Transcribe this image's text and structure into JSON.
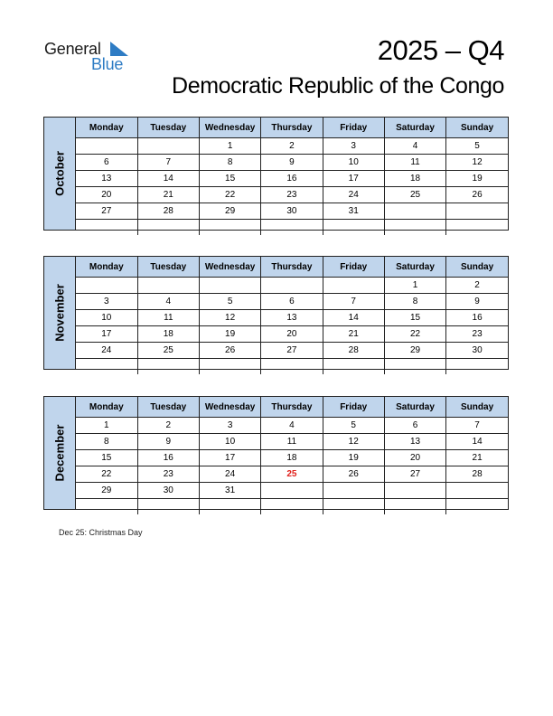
{
  "logo": {
    "general": "General",
    "blue": "Blue"
  },
  "title": "2025 – Q4",
  "country": "Democratic Republic of the Congo",
  "weekdays": [
    "Monday",
    "Tuesday",
    "Wednesday",
    "Thursday",
    "Friday",
    "Saturday",
    "Sunday"
  ],
  "months": [
    {
      "name": "October",
      "weeks": [
        [
          "",
          "",
          "1",
          "2",
          "3",
          "4",
          "5"
        ],
        [
          "6",
          "7",
          "8",
          "9",
          "10",
          "11",
          "12"
        ],
        [
          "13",
          "14",
          "15",
          "16",
          "17",
          "18",
          "19"
        ],
        [
          "20",
          "21",
          "22",
          "23",
          "24",
          "25",
          "26"
        ],
        [
          "27",
          "28",
          "29",
          "30",
          "31",
          "",
          ""
        ],
        [
          "",
          "",
          "",
          "",
          "",
          "",
          ""
        ]
      ]
    },
    {
      "name": "November",
      "weeks": [
        [
          "",
          "",
          "",
          "",
          "",
          "1",
          "2"
        ],
        [
          "3",
          "4",
          "5",
          "6",
          "7",
          "8",
          "9"
        ],
        [
          "10",
          "11",
          "12",
          "13",
          "14",
          "15",
          "16"
        ],
        [
          "17",
          "18",
          "19",
          "20",
          "21",
          "22",
          "23"
        ],
        [
          "24",
          "25",
          "26",
          "27",
          "28",
          "29",
          "30"
        ],
        [
          "",
          "",
          "",
          "",
          "",
          "",
          ""
        ]
      ]
    },
    {
      "name": "December",
      "weeks": [
        [
          "1",
          "2",
          "3",
          "4",
          "5",
          "6",
          "7"
        ],
        [
          "8",
          "9",
          "10",
          "11",
          "12",
          "13",
          "14"
        ],
        [
          "15",
          "16",
          "17",
          "18",
          "19",
          "20",
          "21"
        ],
        [
          "22",
          "23",
          "24",
          "25",
          "26",
          "27",
          "28"
        ],
        [
          "29",
          "30",
          "31",
          "",
          "",
          "",
          ""
        ],
        [
          "",
          "",
          "",
          "",
          "",
          "",
          ""
        ]
      ]
    }
  ],
  "holidays": [
    {
      "month": "December",
      "day": "25",
      "color": "#e0201b"
    }
  ],
  "notes": [
    "Dec 25: Christmas Day"
  ],
  "colors": {
    "header_bg": "#c0d5ec",
    "brand_blue": "#2e7cc4",
    "holiday": "#e0201b"
  }
}
